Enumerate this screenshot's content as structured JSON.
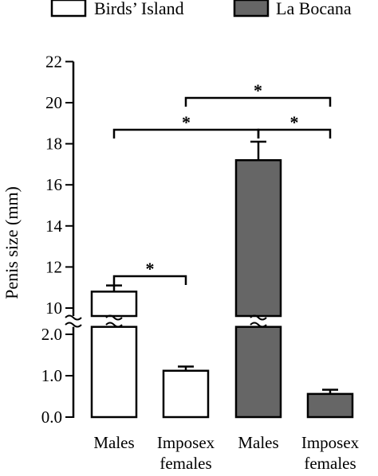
{
  "chart_data": {
    "type": "bar",
    "ylabel": "Penis size (mm)",
    "y_axis": {
      "broken": true,
      "lower_ticks": [
        "0.0",
        "1.0",
        "2.0"
      ],
      "upper_ticks": [
        "10",
        "12",
        "14",
        "16",
        "18",
        "20",
        "22"
      ]
    },
    "categories": [
      {
        "line1": "Males",
        "line2": ""
      },
      {
        "line1": "Imposex",
        "line2": "females"
      },
      {
        "line1": "Males",
        "line2": ""
      },
      {
        "line1": "Imposex",
        "line2": "females"
      }
    ],
    "legend": [
      {
        "label": "Birds’ Island",
        "color": "#ffffff"
      },
      {
        "label": "La Bocana",
        "color": "#666666"
      }
    ],
    "bars": [
      {
        "category": "Males",
        "group": "Birds’ Island",
        "value": 10.8,
        "error": 0.3
      },
      {
        "category": "Imposex females",
        "group": "Birds’ Island",
        "value": 1.12,
        "error": 0.1
      },
      {
        "category": "Males",
        "group": "La Bocana",
        "value": 17.2,
        "error": 0.9
      },
      {
        "category": "Imposex females",
        "group": "La Bocana",
        "value": 0.56,
        "error": 0.1
      }
    ],
    "significance": [
      {
        "from": 0,
        "to": 1,
        "label": "*"
      },
      {
        "from": 0,
        "to": 2,
        "label": "*"
      },
      {
        "from": 2,
        "to": 3,
        "label": "*"
      },
      {
        "from": 1,
        "to": 3,
        "label": "*"
      }
    ]
  }
}
